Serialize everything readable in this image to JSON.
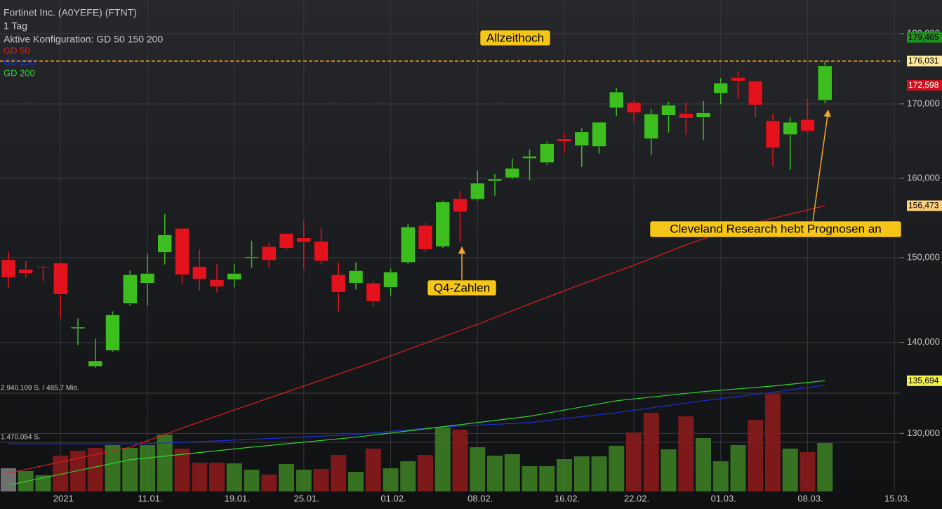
{
  "chart_data": {
    "type": "candlestick",
    "title": "Fortinet Inc. (A0YEFE) (FTNT)",
    "subtitle": "1 Tag",
    "config_label": "Aktive Konfiguration: GD 50 150 200",
    "log_scale": true,
    "grid": true,
    "ylim": [
      124000,
      185000
    ],
    "yticks": [
      {
        "value": 180000,
        "label": "180,000"
      },
      {
        "value": 170000,
        "label": "170,000"
      },
      {
        "value": 160000,
        "label": "160,000"
      },
      {
        "value": 150000,
        "label": "150,000"
      },
      {
        "value": 140000,
        "label": "140,000"
      },
      {
        "value": 130000,
        "label": "130,000"
      }
    ],
    "categories": [
      null,
      null,
      null,
      "2021",
      null,
      null,
      null,
      null,
      "11.01.",
      null,
      null,
      null,
      null,
      "19.01.",
      null,
      null,
      null,
      "25.01.",
      null,
      null,
      null,
      null,
      "01.02.",
      null,
      null,
      null,
      null,
      "08.02.",
      null,
      null,
      null,
      null,
      "16.02.",
      null,
      null,
      null,
      "22.02.",
      null,
      null,
      null,
      null,
      "01.03.",
      null,
      null,
      null,
      null,
      "08.03.",
      null,
      null,
      null,
      null,
      "15.03."
    ],
    "candles": {
      "up_color": "#3cbf1e",
      "down_color": "#e3121c",
      "open": [
        149750,
        148580,
        148830,
        149330,
        141580,
        137290,
        139070,
        144500,
        146920,
        150640,
        153610,
        148920,
        147330,
        147330,
        149920,
        151360,
        152980,
        152440,
        151990,
        147920,
        146920,
        146920,
        146420,
        149420,
        153970,
        151360,
        157390,
        157300,
        159640,
        160090,
        162620,
        162060,
        165240,
        164300,
        164210,
        169440,
        170190,
        165240,
        168410,
        168690,
        168130,
        171460,
        173690,
        173200,
        167670,
        165800,
        167860,
        170490,
        null,
        null,
        null,
        null
      ],
      "high": [
        150720,
        149580,
        149000,
        149500,
        142750,
        140420,
        143580,
        148420,
        150450,
        155410,
        153610,
        151000,
        149170,
        149170,
        152080,
        151810,
        152980,
        154510,
        153700,
        149420,
        149420,
        147170,
        148670,
        154150,
        154330,
        157120,
        158380,
        161030,
        160560,
        162620,
        163830,
        164860,
        165890,
        166640,
        167480,
        172230,
        170490,
        169250,
        170290,
        170190,
        170390,
        173590,
        174660,
        173200,
        168600,
        168130,
        170680,
        176020,
        null,
        null,
        null,
        null
      ],
      "low": [
        146420,
        147580,
        147170,
        142750,
        139690,
        137130,
        138920,
        144250,
        144250,
        149170,
        146920,
        146000,
        145830,
        146420,
        148750,
        148830,
        150910,
        148580,
        149170,
        143580,
        146170,
        144170,
        145420,
        149250,
        150640,
        151180,
        151900,
        157120,
        157750,
        159910,
        159730,
        161780,
        163360,
        161500,
        163270,
        168320,
        167570,
        163080,
        166080,
        165800,
        165050,
        170000,
        170680,
        168130,
        161590,
        161130,
        166080,
        170100,
        null,
        null,
        null,
        null
      ],
      "close": [
        147580,
        148080,
        148750,
        145580,
        141750,
        137910,
        143170,
        147920,
        148080,
        152800,
        147920,
        147420,
        146500,
        148080,
        150090,
        149670,
        151180,
        151900,
        149580,
        145830,
        148420,
        144750,
        148250,
        153790,
        151000,
        156940,
        155680,
        159370,
        159910,
        161310,
        162900,
        164590,
        164860,
        166170,
        167480,
        171650,
        168780,
        168600,
        169810,
        168040,
        168780,
        172910,
        173200,
        169810,
        164020,
        167480,
        166270,
        175340,
        null,
        null,
        null,
        null
      ]
    },
    "series": [
      {
        "name": "GD 50",
        "color": "#e01e1e",
        "x": [
          0,
          7,
          10,
          13,
          17,
          21,
          24,
          27,
          30,
          33,
          36,
          39,
          42,
          45,
          47
        ],
        "values": [
          125870,
          128550,
          130570,
          132510,
          135110,
          137770,
          139910,
          142070,
          144450,
          146790,
          149060,
          151560,
          153830,
          155410,
          156473
        ]
      },
      {
        "name": "GD 150",
        "color": "#1c2fd6",
        "x": [
          0,
          8,
          14,
          20,
          25,
          30,
          35,
          40,
          44,
          47
        ],
        "values": [
          128910,
          128910,
          129370,
          129890,
          130700,
          131140,
          132210,
          133500,
          134430,
          135200
        ]
      },
      {
        "name": "GD 200",
        "color": "#2fd62f",
        "x": [
          0,
          7,
          14,
          20,
          25,
          30,
          35,
          40,
          44,
          47
        ],
        "values": [
          124650,
          127240,
          128550,
          129600,
          130700,
          131830,
          133500,
          134500,
          135110,
          135694
        ]
      }
    ],
    "volume": {
      "vlim": [
        0,
        2940109
      ],
      "vticks": [
        {
          "value": 2940109,
          "label": "2.940.109 S. / 485,7 Mio."
        },
        {
          "value": 1470054,
          "label": "1.470.054 S."
        }
      ],
      "values": [
        693000,
        609000,
        483000,
        1071000,
        1218000,
        1302000,
        1386000,
        1302000,
        1386000,
        1701000,
        1281000,
        861000,
        861000,
        840000,
        651000,
        504000,
        819000,
        651000,
        672000,
        1092000,
        588000,
        1281000,
        693000,
        903000,
        1092000,
        1911000,
        1848000,
        1323000,
        1071000,
        1113000,
        756000,
        756000,
        966000,
        1050000,
        1050000,
        1365000,
        1764000,
        2352000,
        1260000,
        2247000,
        1596000,
        903000,
        1386000,
        2142000,
        2919000,
        1281000,
        1176000,
        1449000,
        null,
        null,
        null,
        null
      ],
      "colors": [
        "#7a7a7a",
        "#3b7d22",
        "#3b7d22",
        "#8a1b1b",
        "#8a1b1b",
        "#8a1b1b",
        "#3b7d22",
        "#3b7d22",
        "#3b7d22",
        "#3b7d22",
        "#8a1b1b",
        "#8a1b1b",
        "#8a1b1b",
        "#3b7d22",
        "#3b7d22",
        "#8a1b1b",
        "#3b7d22",
        "#3b7d22",
        "#8a1b1b",
        "#8a1b1b",
        "#3b7d22",
        "#8a1b1b",
        "#3b7d22",
        "#3b7d22",
        "#8a1b1b",
        "#3b7d22",
        "#8a1b1b",
        "#3b7d22",
        "#3b7d22",
        "#3b7d22",
        "#3b7d22",
        "#3b7d22",
        "#3b7d22",
        "#3b7d22",
        "#3b7d22",
        "#3b7d22",
        "#8a1b1b",
        "#8a1b1b",
        "#3b7d22",
        "#8a1b1b",
        "#3b7d22",
        "#3b7d22",
        "#3b7d22",
        "#8a1b1b",
        "#8a1b1b",
        "#3b7d22",
        "#8a1b1b",
        "#3b7d22",
        null,
        null,
        null,
        null
      ]
    },
    "price_labels": [
      {
        "value": 179465,
        "label": "179,465",
        "bg": "#1f8f1f",
        "fg": "#000000"
      },
      {
        "value": 176031,
        "label": "176,031",
        "bg": "#ffe89a",
        "fg": "#000000",
        "dashed_line": "#f5a020"
      },
      {
        "value": 172598,
        "label": "172,598",
        "bg": "#d0101c",
        "fg": "#ffffff"
      },
      {
        "value": 156473,
        "label": "156,473",
        "bg": "#ffd27a",
        "fg": "#000000"
      },
      {
        "value": 135694,
        "label": "135,694",
        "bg": "#f2f24a",
        "fg": "#000000"
      }
    ],
    "annotations": [
      {
        "text": "Allzeithoch"
      },
      {
        "text": "Q4-Zahlen"
      },
      {
        "text": "Cleveland Research hebt Prognosen an"
      }
    ]
  }
}
